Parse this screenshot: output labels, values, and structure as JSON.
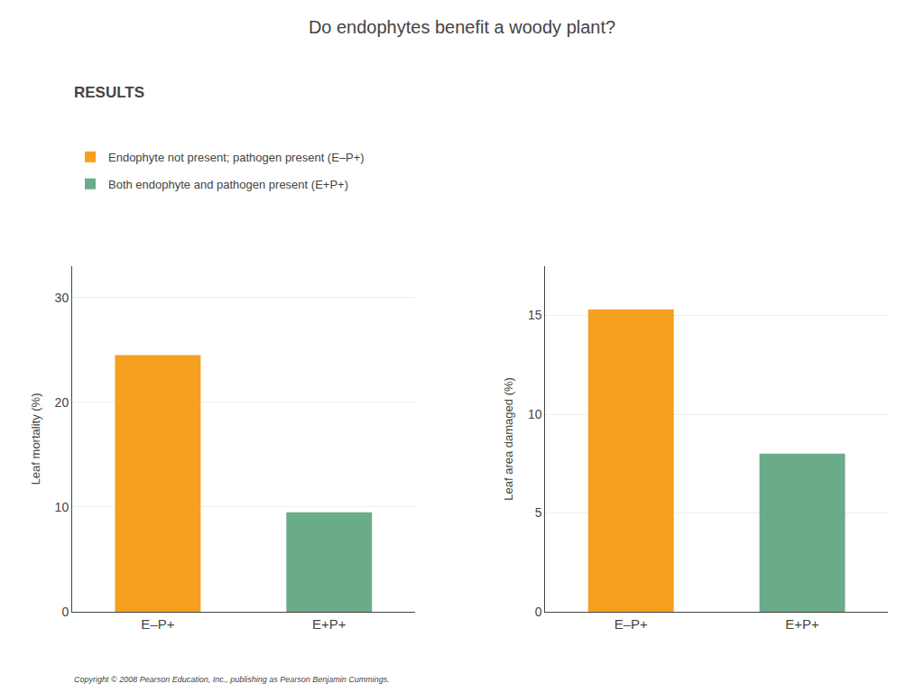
{
  "title": "Do endophytes benefit a woody plant?",
  "annotations": [
    "RESULTS",
    "Copyright © 2008 Pearson Education, Inc., publishing as Pearson Benjamin Cummings."
  ],
  "legend_entries": [
    "Endophyte not present; pathogen present (E–P+)",
    "Both endophyte and pathogen present (E+P+)"
  ],
  "chart_data": [
    {
      "type": "bar",
      "ylabel": "Leaf mortality (%)",
      "categories": [
        "E–P+",
        "E+P+"
      ],
      "values": [
        24.5,
        9.5
      ],
      "colors": [
        "#f5a020",
        "#6aab8a"
      ],
      "ylim": [
        0,
        33
      ],
      "yticks": [
        0,
        10,
        20,
        30
      ],
      "grid": true
    },
    {
      "type": "bar",
      "ylabel": "Leaf area damaged (%)",
      "categories": [
        "E–P+",
        "E+P+"
      ],
      "values": [
        15.3,
        8.0
      ],
      "colors": [
        "#f5a020",
        "#6aab8a"
      ],
      "ylim": [
        0,
        17.5
      ],
      "yticks": [
        0,
        5,
        10,
        15
      ],
      "grid": true
    }
  ]
}
